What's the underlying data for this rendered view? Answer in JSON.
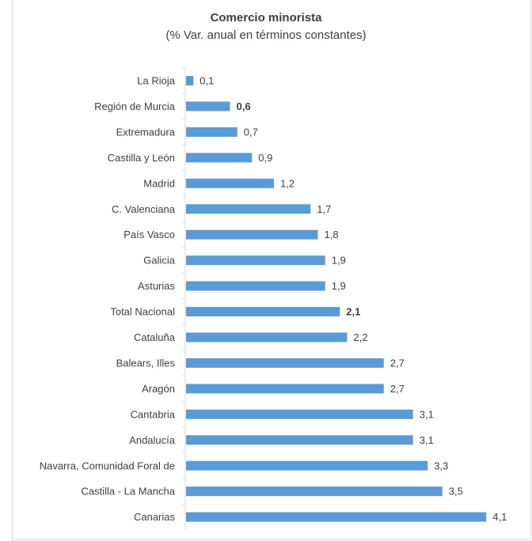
{
  "chart_data": {
    "type": "bar",
    "orientation": "horizontal",
    "title": "Comercio minorista",
    "subtitle": "(% Var. anual en términos constantes)",
    "categories": [
      "La Rioja",
      "Región de Murcia",
      "Extremadura",
      "Castilla y León",
      "Madrid",
      "C. Valenciana",
      "País Vasco",
      "Galicia",
      "Asturias",
      "Total Nacional",
      "Cataluña",
      "Balears, Illes",
      "Aragón",
      "Cantabria",
      "Andalucía",
      "Navarra, Comunidad Foral de",
      "Castilla - La Mancha",
      "Canarias"
    ],
    "values": [
      0.1,
      0.6,
      0.7,
      0.9,
      1.2,
      1.7,
      1.8,
      1.9,
      1.9,
      2.1,
      2.2,
      2.7,
      2.7,
      3.1,
      3.1,
      3.3,
      3.5,
      4.1
    ],
    "value_labels": [
      "0,1",
      "0,6",
      "0,7",
      "0,9",
      "1,2",
      "1,7",
      "1,8",
      "1,9",
      "1,9",
      "2,1",
      "2,2",
      "2,7",
      "2,7",
      "3,1",
      "3,1",
      "3,3",
      "3,5",
      "4,1"
    ],
    "bold_value_labels": [
      "Región de Murcia",
      "Total Nacional"
    ],
    "bar_color": "#5b9bd5",
    "axis_color": "#d9d9d9",
    "text_color": "#404040",
    "grid": false,
    "legend": "none"
  }
}
